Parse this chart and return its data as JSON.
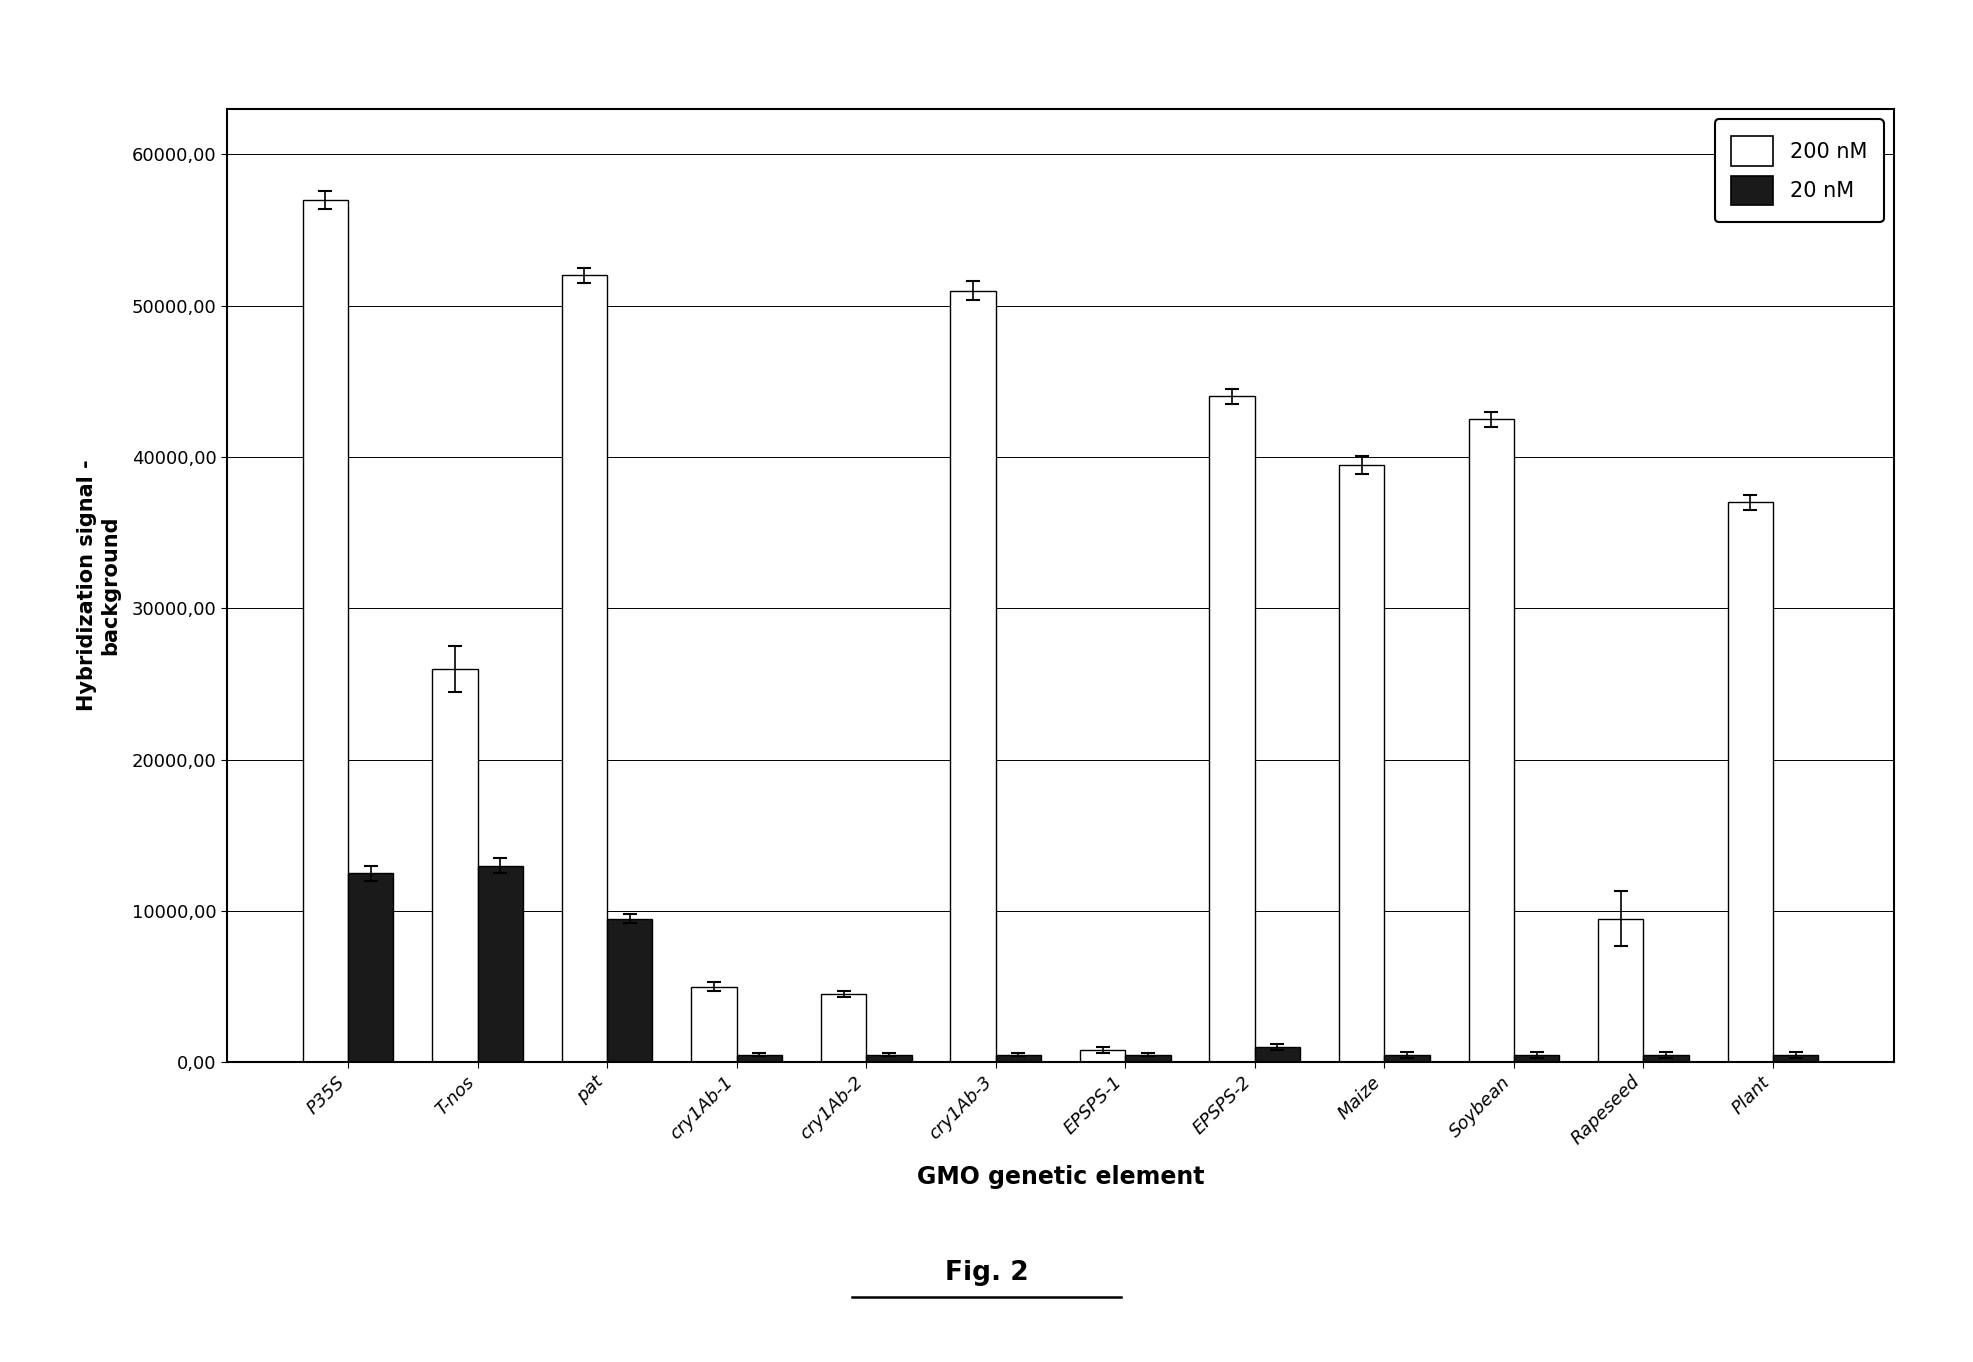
{
  "categories": [
    "P35S",
    "T-nos",
    "pat",
    "cry1Ab-1",
    "cry1Ab-2",
    "cry1Ab-3",
    "EPSPS-1",
    "EPSPS-2",
    "Maize",
    "Soybean",
    "Rapeseed",
    "Plant"
  ],
  "values_200nM": [
    57000,
    26000,
    52000,
    5000,
    4500,
    51000,
    800,
    44000,
    39500,
    42500,
    9500,
    37000
  ],
  "values_20nM": [
    12500,
    13000,
    9500,
    500,
    500,
    500,
    500,
    1000,
    500,
    500,
    500,
    500
  ],
  "errors_200nM": [
    600,
    1500,
    500,
    300,
    200,
    600,
    200,
    500,
    600,
    500,
    1800,
    500
  ],
  "errors_20nM": [
    500,
    500,
    300,
    100,
    100,
    100,
    100,
    200,
    200,
    200,
    200,
    200
  ],
  "color_200nM": "#ffffff",
  "color_20nM": "#1a1a1a",
  "edge_color": "#000000",
  "ylabel": "Hybridization signal -\nbackground",
  "xlabel": "GMO genetic element",
  "legend_labels": [
    "200 nM",
    "20 nM"
  ],
  "ylim": [
    0,
    63000
  ],
  "yticks": [
    0,
    10000,
    20000,
    30000,
    40000,
    50000,
    60000
  ],
  "ytick_labels": [
    "0,00",
    "10000,00",
    "20000,00",
    "30000,00",
    "40000,00",
    "50000,00",
    "60000,00"
  ],
  "fig_caption": "Fig. 2",
  "background_color": "#ffffff",
  "bar_width": 0.35
}
